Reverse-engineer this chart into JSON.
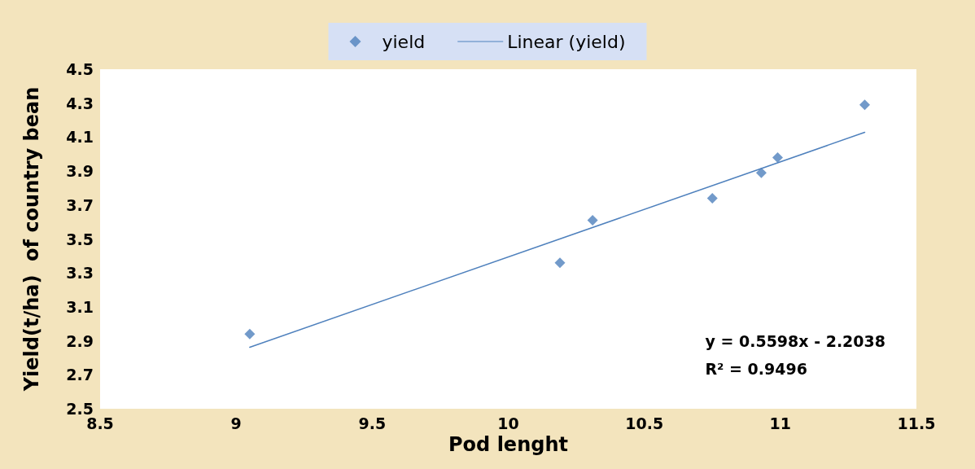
{
  "chart_data": {
    "type": "scatter",
    "xlabel": "Pod lenght",
    "ylabel": "Yield(t/ha)  of country bean",
    "x": [
      9.05,
      10.19,
      10.31,
      10.75,
      10.93,
      10.99,
      11.31
    ],
    "series": [
      {
        "name": "yield",
        "color": "#4f81bd",
        "values": [
          2.94,
          3.36,
          3.61,
          3.74,
          3.89,
          3.98,
          4.29
        ],
        "marker": "diamond"
      },
      {
        "name": "Linear (yield)",
        "type": "line",
        "color": "#4f81bd",
        "x": [
          9.05,
          11.31
        ],
        "values": [
          2.862,
          4.128
        ],
        "marker": "none",
        "line_style": "solid"
      }
    ],
    "xlim": [
      8.5,
      11.5
    ],
    "xticks": [
      8.5,
      9,
      9.5,
      10,
      10.5,
      11,
      11.5
    ],
    "ylim": [
      2.5,
      4.5
    ],
    "yticks": [
      2.5,
      2.7,
      2.9,
      3.1,
      3.3,
      3.5,
      3.7,
      3.9,
      4.1,
      4.3,
      4.5
    ],
    "grid": false,
    "legend": "top",
    "annotations": [
      "y = 0.5598x - 2.2038\nR² = 0.9496"
    ]
  }
}
